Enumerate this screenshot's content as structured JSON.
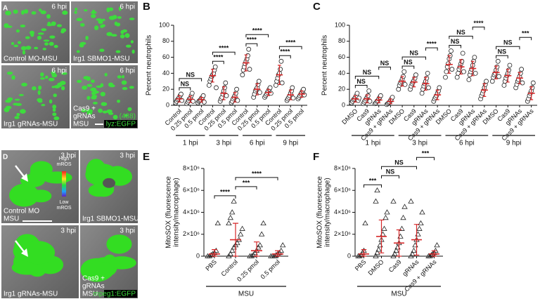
{
  "panels": [
    {
      "label": "A",
      "images": [
        {
          "time": "6 hpi",
          "caption": [
            "Control MO-MSU"
          ]
        },
        {
          "time": "6 hpi",
          "caption": [
            "Irg1 SBMO1-MSU"
          ]
        },
        {
          "time": "6 hpi",
          "caption": [
            "Irg1 gRNAs-MSU"
          ]
        },
        {
          "time": "6 hpi",
          "caption": [
            "Cas9 +",
            "gRNAs",
            "MSU"
          ]
        }
      ],
      "channel": "(488)",
      "reporter": "lyz:EGFP"
    },
    {
      "label": "D",
      "images": [
        {
          "time": "3 hpi",
          "caption": [
            "Control MO",
            "MSU"
          ]
        },
        {
          "time": "3 hpi",
          "caption": [
            "Irg1 SBMO1-MSU"
          ]
        },
        {
          "time": "3 hpi",
          "caption": [
            "Irg1 gRNAs-MSU"
          ]
        },
        {
          "time": "3 hpi",
          "caption": [
            "Cas9 +",
            "gRNAs",
            "MSU"
          ]
        }
      ],
      "reporter": "mpeg1:EGFP",
      "scale_high": [
        "High",
        "mROS"
      ],
      "scale_low": [
        "Low",
        "mROS"
      ]
    }
  ],
  "chart_data": [
    {
      "type": "dot",
      "panel_label": "B",
      "y_label": [
        "Percent neutrophils"
      ],
      "ylim": [
        0,
        100
      ],
      "yticks": [
        0,
        20,
        40,
        60,
        80,
        100
      ],
      "categories": [
        "Control",
        "0.25 pmol",
        "0.5 pmol",
        "Control",
        "0.25 pmol",
        "0.5 pmol",
        "Control",
        "0.25 pmol",
        "0.5 pmol",
        "Control",
        "0.25 pmol",
        "0.5 pmol"
      ],
      "groups": [
        "1 hpi",
        "3 hpi",
        "6 hpi",
        "9 hpi"
      ],
      "series": [
        {
          "marker": "circle",
          "color": "#d62728",
          "values": [
            8,
            7.6,
            7,
            37,
            15,
            10,
            53,
            20,
            16,
            38,
            13,
            14
          ],
          "errors": [
            4,
            4,
            3,
            8,
            8,
            6,
            10,
            7,
            4,
            12,
            6,
            4
          ],
          "points": [
            [
              3,
              5,
              7,
              8,
              10,
              12,
              14,
              6
            ],
            [
              2,
              4,
              6,
              8,
              9,
              12,
              15,
              5
            ],
            [
              3,
              5,
              6,
              7,
              9,
              10,
              12,
              4
            ],
            [
              25,
              30,
              33,
              36,
              38,
              40,
              44,
              48,
              22
            ],
            [
              5,
              8,
              10,
              14,
              18,
              22,
              28,
              12
            ],
            [
              3,
              5,
              8,
              10,
              12,
              15,
              20,
              6
            ],
            [
              38,
              44,
              48,
              52,
              55,
              58,
              62,
              70,
              45
            ],
            [
              10,
              14,
              18,
              20,
              22,
              26,
              30,
              16
            ],
            [
              10,
              12,
              14,
              16,
              18,
              20,
              22,
              15
            ],
            [
              25,
              30,
              34,
              38,
              40,
              45,
              55,
              28
            ],
            [
              6,
              8,
              10,
              12,
              15,
              18,
              22,
              9
            ],
            [
              8,
              10,
              12,
              14,
              16,
              18,
              20,
              13
            ]
          ]
        }
      ],
      "brackets": [
        {
          "from": 0,
          "to": 1,
          "label": "NS"
        },
        {
          "from": 0,
          "to": 2,
          "label": "NS"
        },
        {
          "from": 3,
          "to": 4,
          "label": "****"
        },
        {
          "from": 3,
          "to": 5,
          "label": "****"
        },
        {
          "from": 6,
          "to": 7,
          "label": "****"
        },
        {
          "from": 6,
          "to": 8,
          "label": "****"
        },
        {
          "from": 9,
          "to": 10,
          "label": "****"
        },
        {
          "from": 9,
          "to": 11,
          "label": "****"
        }
      ]
    },
    {
      "type": "dot",
      "panel_label": "C",
      "y_label": [
        "Percent neutrophils"
      ],
      "ylim": [
        0,
        100
      ],
      "yticks": [
        0,
        20,
        40,
        60,
        80,
        100
      ],
      "categories": [
        "DMSO",
        "Cas9",
        "gRNAs",
        "Cas9 + gRNAs",
        "DMSO",
        "Cas9",
        "gRNAs",
        "Cas9 + gRNAs",
        "DMSO",
        "Cas9",
        "gRNAs",
        "Cas9 + gRNAs",
        "DMSO",
        "Cas9",
        "gRNAs",
        "Cas9 + gRNAs"
      ],
      "groups": [
        "1 hpi",
        "3 hpi",
        "6 hpi",
        "9 hpi"
      ],
      "series": [
        {
          "marker": "circle",
          "color": "#d62728",
          "values": [
            8,
            8,
            6.6,
            4.9,
            30,
            29,
            27,
            13,
            51,
            48,
            46,
            19,
            41,
            37,
            34,
            15
          ],
          "errors": [
            4,
            5,
            3.5,
            3,
            6,
            6,
            8,
            6,
            11,
            9,
            9,
            8,
            8,
            8,
            7,
            8
          ],
          "points": [
            [
              3,
              5,
              7,
              8,
              10,
              12,
              15,
              6,
              9
            ],
            [
              2,
              4,
              6,
              8,
              10,
              12,
              18,
              5
            ],
            [
              2,
              3,
              5,
              6,
              8,
              10,
              12
            ],
            [
              1,
              2,
              3,
              4,
              6,
              8,
              10
            ],
            [
              20,
              25,
              28,
              30,
              33,
              36,
              42,
              26
            ],
            [
              20,
              24,
              27,
              29,
              31,
              34,
              38
            ],
            [
              15,
              20,
              24,
              27,
              30,
              34,
              40,
              22
            ],
            [
              5,
              8,
              10,
              12,
              15,
              18,
              22
            ],
            [
              35,
              42,
              48,
              52,
              58,
              62,
              68,
              45
            ],
            [
              35,
              40,
              45,
              48,
              52,
              55,
              65,
              42
            ],
            [
              32,
              38,
              42,
              45,
              50,
              55,
              60,
              40
            ],
            [
              8,
              12,
              15,
              18,
              22,
              26,
              30
            ],
            [
              30,
              35,
              38,
              40,
              44,
              48,
              55,
              36
            ],
            [
              25,
              30,
              34,
              37,
              40,
              44,
              50
            ],
            [
              22,
              26,
              30,
              32,
              36,
              40,
              45,
              28
            ],
            [
              5,
              8,
              12,
              15,
              18,
              22,
              28
            ]
          ]
        }
      ],
      "brackets": [
        {
          "from": 0,
          "to": 1,
          "label": "NS"
        },
        {
          "from": 0,
          "to": 2,
          "label": "NS"
        },
        {
          "from": 2,
          "to": 3,
          "label": "NS"
        },
        {
          "from": 4,
          "to": 5,
          "label": "NS"
        },
        {
          "from": 4,
          "to": 6,
          "label": "NS"
        },
        {
          "from": 6,
          "to": 7,
          "label": "****"
        },
        {
          "from": 8,
          "to": 9,
          "label": "NS"
        },
        {
          "from": 8,
          "to": 10,
          "label": "NS"
        },
        {
          "from": 10,
          "to": 11,
          "label": "****"
        },
        {
          "from": 12,
          "to": 13,
          "label": "NS"
        },
        {
          "from": 12,
          "to": 14,
          "label": "NS"
        },
        {
          "from": 14,
          "to": 15,
          "label": "***"
        }
      ]
    },
    {
      "type": "dot",
      "panel_label": "E",
      "y_label": [
        "MitoSOX (fluorescence",
        "intensity/macrophage)"
      ],
      "ylim": [
        0,
        8000000
      ],
      "yticks": [
        0,
        {
          "value": 2000000,
          "label": "2×10⁶"
        },
        {
          "value": 4000000,
          "label": "4×10⁶"
        },
        {
          "value": 6000000,
          "label": "6×10⁶"
        },
        {
          "value": 8000000,
          "label": "8×10⁶"
        }
      ],
      "categories": [
        "PBS",
        "Control",
        "0.25 pmol",
        "0.5 pmol"
      ],
      "groups": [
        "MSU"
      ],
      "series": [
        {
          "marker": "triangle",
          "color": "#d62728",
          "values": [
            200000,
            1500000,
            500000,
            200000
          ],
          "errors": [
            400000,
            1500000,
            800000,
            300000
          ],
          "points": [
            [
              0,
              0,
              100000,
              200000,
              300000,
              500000,
              3000000
            ],
            [
              0,
              200000,
              500000,
              800000,
              1000000,
              1200000,
              1500000,
              2000000,
              2500000,
              3000000,
              3500000,
              4000000,
              5000000
            ],
            [
              0,
              0,
              100000,
              300000,
              500000,
              800000,
              1000000,
              2000000,
              3000000
            ],
            [
              0,
              0,
              0,
              100000,
              200000,
              300000,
              500000,
              1000000
            ]
          ]
        }
      ],
      "brackets": [
        {
          "from": 0,
          "to": 1,
          "label": "****"
        },
        {
          "from": 1,
          "to": 2,
          "label": "***"
        },
        {
          "from": 1,
          "to": 3,
          "label": "****"
        }
      ]
    },
    {
      "type": "dot",
      "panel_label": "F",
      "y_label": [
        "MitoSOX (fluorescence",
        "intensity/macrophage)"
      ],
      "ylim": [
        0,
        8000000
      ],
      "yticks": [
        0,
        {
          "value": 2000000,
          "label": "2×10⁶"
        },
        {
          "value": 4000000,
          "label": "4×10⁶"
        },
        {
          "value": 6000000,
          "label": "6×10⁶"
        },
        {
          "value": 8000000,
          "label": "8×10⁶"
        }
      ],
      "categories": [
        "PBS",
        "DMSO",
        "Cas9",
        "gRNAs",
        "Cas9 + gRNAs"
      ],
      "groups": [
        "MSU"
      ],
      "series": [
        {
          "marker": "triangle",
          "color": "#d62728",
          "values": [
            200000,
            1800000,
            1200000,
            1500000,
            200000
          ],
          "errors": [
            400000,
            1500000,
            1200000,
            1400000,
            300000
          ],
          "points": [
            [
              0,
              0,
              100000,
              300000,
              500000,
              3000000
            ],
            [
              0,
              300000,
              600000,
              1000000,
              1500000,
              2000000,
              2500000,
              3500000,
              4000000,
              5000000,
              6000000
            ],
            [
              0,
              200000,
              500000,
              800000,
              1200000,
              1800000,
              2500000,
              3500000,
              4500000,
              5000000
            ],
            [
              0,
              200000,
              500000,
              1000000,
              1500000,
              2000000,
              2500000,
              3000000,
              4000000,
              5000000
            ],
            [
              0,
              0,
              100000,
              200000,
              300000,
              500000,
              1000000
            ]
          ]
        }
      ],
      "brackets": [
        {
          "from": 0,
          "to": 1,
          "label": "***"
        },
        {
          "from": 1,
          "to": 2,
          "label": "NS"
        },
        {
          "from": 1,
          "to": 3,
          "label": "NS"
        },
        {
          "from": 3,
          "to": 4,
          "label": "***"
        }
      ]
    }
  ]
}
